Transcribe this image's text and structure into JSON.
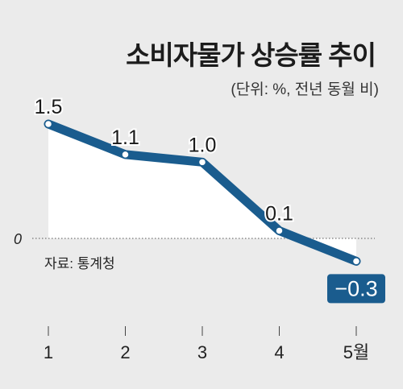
{
  "chart_data": {
    "type": "line",
    "title": "소비자물가 상승률 추이",
    "subtitle": "(단위: %, 전년 동월 비)",
    "source": "자료: 통계청",
    "categories": [
      "1",
      "2",
      "3",
      "4",
      "5월"
    ],
    "values": [
      1.5,
      1.1,
      1.0,
      0.1,
      -0.3
    ],
    "value_labels": [
      "1.5",
      "1.1",
      "1.0",
      "0.1",
      "−0.3"
    ],
    "zero_label": "0",
    "ylim": [
      -0.3,
      1.5
    ],
    "grid": false,
    "line_color": "#1a5c8e",
    "highlight_color": "#1a5c8e",
    "area_fill": "#ffffff",
    "background": "#ebebeb"
  }
}
